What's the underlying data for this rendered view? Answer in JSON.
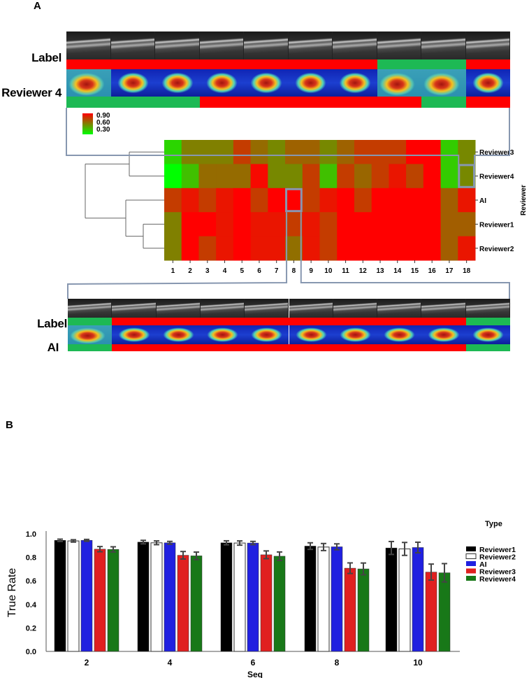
{
  "panel_a": {
    "letter": "A",
    "top_strip": {
      "label_text": "Label",
      "reviewer_text": "Reviewer 4",
      "label_bar": [
        "red",
        "red",
        "red",
        "red",
        "red",
        "red",
        "red",
        "green",
        "green",
        "red"
      ],
      "reviewer_bar": [
        "green",
        "green",
        "green",
        "red",
        "red",
        "red",
        "red",
        "red",
        "green",
        "red"
      ]
    },
    "bottom_strip": {
      "label_text": "Label",
      "reviewer_text": "AI",
      "label_bar": [
        "green",
        "red",
        "red",
        "red",
        "red",
        "red",
        "red",
        "red",
        "red",
        "green"
      ],
      "reviewer_bar": [
        "green",
        "red",
        "red",
        "red",
        "red",
        "red",
        "red",
        "red",
        "red",
        "green"
      ]
    },
    "colorbar": {
      "labels": [
        "0.90",
        "0.60",
        "0.30"
      ],
      "max": 0.9,
      "mid": 0.6,
      "min": 0.3
    },
    "y_axis_title": "Reviewer",
    "colors": {
      "red": "#ff0000",
      "green": "#1db954",
      "connector": "#8797b0"
    }
  },
  "chart_data": [
    {
      "type": "heatmap",
      "rows": [
        "Reviewer3",
        "Reviewer4",
        "AI",
        "Reviewer1",
        "Reviewer2"
      ],
      "row_label_display": [
        "Reviewer3",
        "Reviewer4",
        "AI",
        "Reviewer1",
        "Reviewer2"
      ],
      "columns": [
        "1",
        "2",
        "3",
        "4",
        "5",
        "6",
        "7",
        "8",
        "9",
        "10",
        "11",
        "12",
        "13",
        "14",
        "15",
        "16",
        "17",
        "18"
      ],
      "ylabel": "Reviewer",
      "color_scale": {
        "min": 0.3,
        "mid": 0.6,
        "max": 0.9,
        "colors": [
          "#00ff00",
          "#808000",
          "#ff0000"
        ]
      },
      "values": [
        [
          0.4,
          0.6,
          0.6,
          0.6,
          0.76,
          0.65,
          0.58,
          0.67,
          0.67,
          0.58,
          0.67,
          0.76,
          0.76,
          0.76,
          0.92,
          0.92,
          0.42,
          0.58
        ],
        [
          0.3,
          0.45,
          0.65,
          0.65,
          0.65,
          0.88,
          0.58,
          0.58,
          0.76,
          0.45,
          0.76,
          0.66,
          0.76,
          0.85,
          0.74,
          0.92,
          0.42,
          0.58
        ],
        [
          0.76,
          0.85,
          0.76,
          0.85,
          0.92,
          0.76,
          0.92,
          0.92,
          0.76,
          0.85,
          0.92,
          0.76,
          0.92,
          0.92,
          0.92,
          0.92,
          0.68,
          0.85
        ],
        [
          0.6,
          0.92,
          0.92,
          0.85,
          0.92,
          0.85,
          0.85,
          0.76,
          0.85,
          0.76,
          0.92,
          0.92,
          0.92,
          0.92,
          0.92,
          0.92,
          0.68,
          0.68
        ],
        [
          0.6,
          0.92,
          0.76,
          0.85,
          0.92,
          0.85,
          0.85,
          0.64,
          0.85,
          0.76,
          0.92,
          0.92,
          0.92,
          0.92,
          0.92,
          0.92,
          0.68,
          0.85
        ]
      ],
      "dendrogram": "((Reviewer3,Reviewer4),(AI,(Reviewer1,Reviewer2)))",
      "highlights": [
        {
          "row": "Reviewer4",
          "column": "18"
        },
        {
          "row": "AI",
          "column": "8"
        }
      ]
    },
    {
      "type": "bar",
      "panel_letter": "B",
      "categories": [
        "2",
        "4",
        "6",
        "8",
        "10"
      ],
      "xlabel": "Seq",
      "ylabel": "True Rate",
      "ylim": [
        0,
        1.0
      ],
      "yticks": [
        "0.0",
        "0.2",
        "0.4",
        "0.6",
        "0.8",
        "1.0"
      ],
      "legend_title": "Type",
      "legend_position": "right",
      "grid": false,
      "series": [
        {
          "name": "Reviewer1",
          "color": "#000000",
          "values": [
            0.945,
            0.93,
            0.924,
            0.896,
            0.88
          ],
          "errors": [
            0.01,
            0.015,
            0.017,
            0.028,
            0.055
          ]
        },
        {
          "name": "Reviewer2",
          "color": "#ffffff",
          "values": [
            0.94,
            0.924,
            0.922,
            0.888,
            0.872
          ],
          "errors": [
            0.01,
            0.016,
            0.018,
            0.03,
            0.055
          ]
        },
        {
          "name": "AI",
          "color": "#2020e0",
          "values": [
            0.945,
            0.924,
            0.922,
            0.89,
            0.884
          ],
          "errors": [
            0.008,
            0.012,
            0.014,
            0.025,
            0.045
          ]
        },
        {
          "name": "Reviewer3",
          "color": "#e02020",
          "values": [
            0.87,
            0.818,
            0.822,
            0.708,
            0.675
          ],
          "errors": [
            0.022,
            0.032,
            0.033,
            0.045,
            0.068
          ]
        },
        {
          "name": "Reviewer4",
          "color": "#187818",
          "values": [
            0.868,
            0.813,
            0.81,
            0.702,
            0.669
          ],
          "errors": [
            0.022,
            0.032,
            0.036,
            0.05,
            0.078
          ]
        }
      ]
    }
  ]
}
